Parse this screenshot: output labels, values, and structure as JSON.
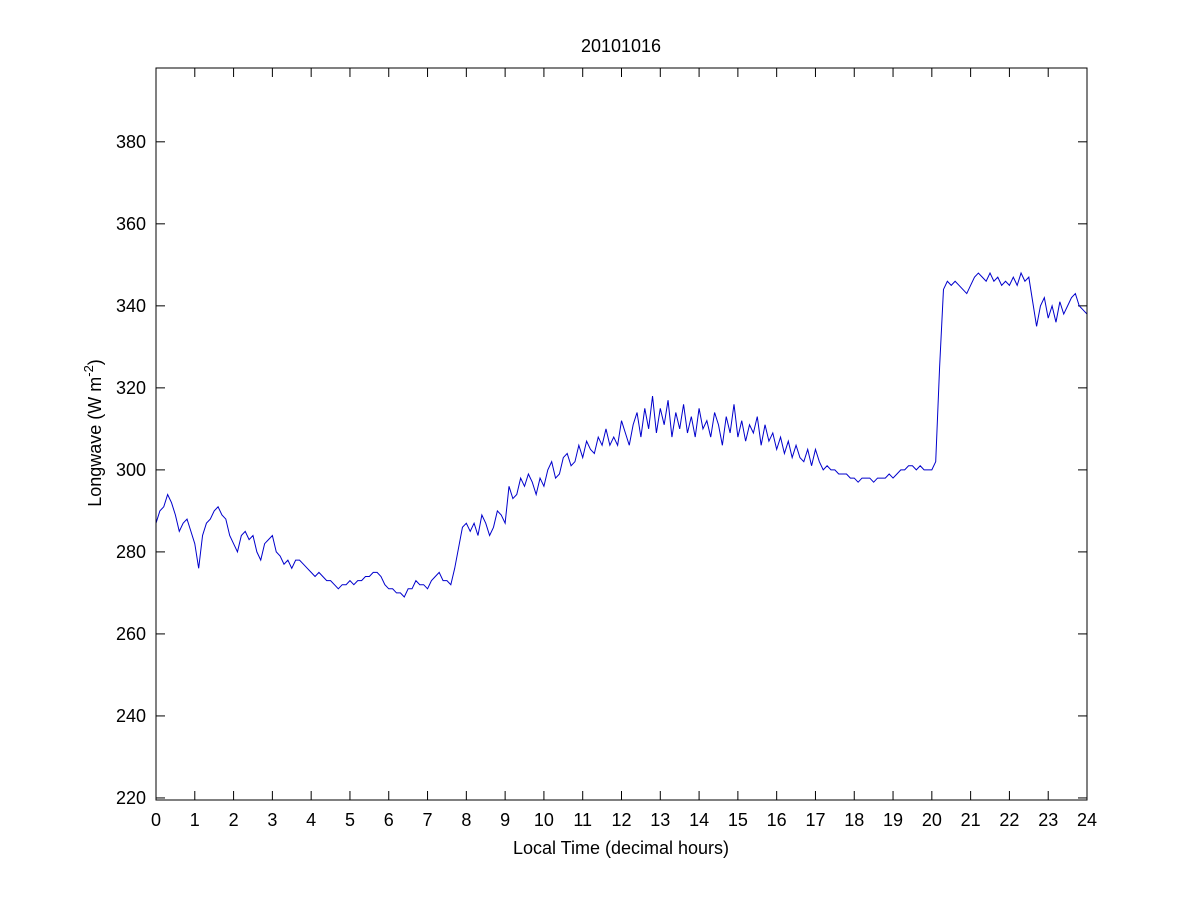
{
  "chart_data": {
    "type": "line",
    "title": "20101016",
    "xlabel": "Local Time (decimal hours)",
    "ylabel": [
      "Longwave (W m",
      "-2",
      ")"
    ],
    "xlim": [
      0,
      24
    ],
    "ylim": [
      219.5,
      398
    ],
    "xticks": [
      0,
      1,
      2,
      3,
      4,
      5,
      6,
      7,
      8,
      9,
      10,
      11,
      12,
      13,
      14,
      15,
      16,
      17,
      18,
      19,
      20,
      21,
      22,
      23,
      24
    ],
    "yticks": [
      220,
      240,
      260,
      280,
      300,
      320,
      340,
      360,
      380
    ],
    "grid": false,
    "x": [
      0,
      0.1,
      0.2,
      0.3,
      0.4,
      0.5,
      0.6,
      0.7,
      0.8,
      0.9,
      1,
      1.1,
      1.2,
      1.3,
      1.4,
      1.5,
      1.6,
      1.7,
      1.8,
      1.9,
      2,
      2.1,
      2.2,
      2.3,
      2.4,
      2.5,
      2.6,
      2.7,
      2.8,
      2.9,
      3,
      3.1,
      3.2,
      3.3,
      3.4,
      3.5,
      3.6,
      3.7,
      3.8,
      3.9,
      4,
      4.1,
      4.2,
      4.3,
      4.4,
      4.5,
      4.6,
      4.7,
      4.8,
      4.9,
      5,
      5.1,
      5.2,
      5.3,
      5.4,
      5.5,
      5.6,
      5.7,
      5.8,
      5.9,
      6,
      6.1,
      6.2,
      6.3,
      6.4,
      6.5,
      6.6,
      6.7,
      6.8,
      6.9,
      7,
      7.1,
      7.2,
      7.3,
      7.4,
      7.5,
      7.6,
      7.7,
      7.8,
      7.9,
      8,
      8.1,
      8.2,
      8.3,
      8.4,
      8.5,
      8.6,
      8.7,
      8.8,
      8.9,
      9,
      9.1,
      9.2,
      9.3,
      9.4,
      9.5,
      9.6,
      9.7,
      9.8,
      9.9,
      10,
      10.1,
      10.2,
      10.3,
      10.4,
      10.5,
      10.6,
      10.7,
      10.8,
      10.9,
      11,
      11.1,
      11.2,
      11.3,
      11.4,
      11.5,
      11.6,
      11.7,
      11.8,
      11.9,
      12,
      12.1,
      12.2,
      12.3,
      12.4,
      12.5,
      12.6,
      12.7,
      12.8,
      12.9,
      13,
      13.1,
      13.2,
      13.3,
      13.4,
      13.5,
      13.6,
      13.7,
      13.8,
      13.9,
      14,
      14.1,
      14.2,
      14.3,
      14.4,
      14.5,
      14.6,
      14.7,
      14.8,
      14.9,
      15,
      15.1,
      15.2,
      15.3,
      15.4,
      15.5,
      15.6,
      15.7,
      15.8,
      15.9,
      16,
      16.1,
      16.2,
      16.3,
      16.4,
      16.5,
      16.6,
      16.7,
      16.8,
      16.9,
      17,
      17.1,
      17.2,
      17.3,
      17.4,
      17.5,
      17.6,
      17.7,
      17.8,
      17.9,
      18,
      18.1,
      18.2,
      18.3,
      18.4,
      18.5,
      18.6,
      18.7,
      18.8,
      18.9,
      19,
      19.1,
      19.2,
      19.3,
      19.4,
      19.5,
      19.6,
      19.7,
      19.8,
      19.9,
      20,
      20.1,
      20.2,
      20.3,
      20.4,
      20.5,
      20.6,
      20.7,
      20.8,
      20.9,
      21,
      21.1,
      21.2,
      21.3,
      21.4,
      21.5,
      21.6,
      21.7,
      21.8,
      21.9,
      22,
      22.1,
      22.2,
      22.3,
      22.4,
      22.5,
      22.6,
      22.7,
      22.8,
      22.9,
      23,
      23.1,
      23.2,
      23.3,
      23.4,
      23.5,
      23.6,
      23.7,
      23.8,
      23.9,
      24
    ],
    "series": [
      {
        "color": "#0000cc",
        "values": [
          287,
          290,
          291,
          294,
          292,
          289,
          285,
          287,
          288,
          285,
          282,
          276,
          284,
          287,
          288,
          290,
          291,
          289,
          288,
          284,
          282,
          280,
          284,
          285,
          283,
          284,
          280,
          278,
          282,
          283,
          284,
          280,
          279,
          277,
          278,
          276,
          278,
          278,
          277,
          276,
          275,
          274,
          275,
          274,
          273,
          273,
          272,
          271,
          272,
          272,
          273,
          272,
          273,
          273,
          274,
          274,
          275,
          275,
          274,
          272,
          271,
          271,
          270,
          270,
          269,
          271,
          271,
          273,
          272,
          272,
          271,
          273,
          274,
          275,
          273,
          273,
          272,
          276,
          281,
          286,
          287,
          285,
          287,
          284,
          289,
          287,
          284,
          286,
          290,
          289,
          287,
          296,
          293,
          294,
          298,
          296,
          299,
          297,
          294,
          298,
          296,
          300,
          302,
          298,
          299,
          303,
          304,
          301,
          302,
          306,
          303,
          307,
          305,
          304,
          308,
          306,
          310,
          306,
          308,
          306,
          312,
          309,
          306,
          311,
          314,
          308,
          315,
          310,
          318,
          309,
          315,
          311,
          317,
          308,
          314,
          310,
          316,
          309,
          313,
          308,
          315,
          310,
          312,
          308,
          314,
          311,
          306,
          313,
          309,
          316,
          308,
          312,
          307,
          311,
          309,
          313,
          306,
          311,
          307,
          309,
          305,
          308,
          304,
          307,
          303,
          306,
          303,
          302,
          305,
          301,
          305,
          302,
          300,
          301,
          300,
          300,
          299,
          299,
          299,
          298,
          298,
          297,
          298,
          298,
          298,
          297,
          298,
          298,
          298,
          299,
          298,
          299,
          300,
          300,
          301,
          301,
          300,
          301,
          300,
          300,
          300,
          302,
          325,
          344,
          346,
          345,
          346,
          345,
          344,
          343,
          345,
          347,
          348,
          347,
          346,
          348,
          346,
          347,
          345,
          346,
          345,
          347,
          345,
          348,
          346,
          347,
          341,
          335,
          340,
          342,
          337,
          340,
          336,
          341,
          338,
          340,
          342,
          343,
          340,
          339,
          338
        ]
      }
    ]
  }
}
